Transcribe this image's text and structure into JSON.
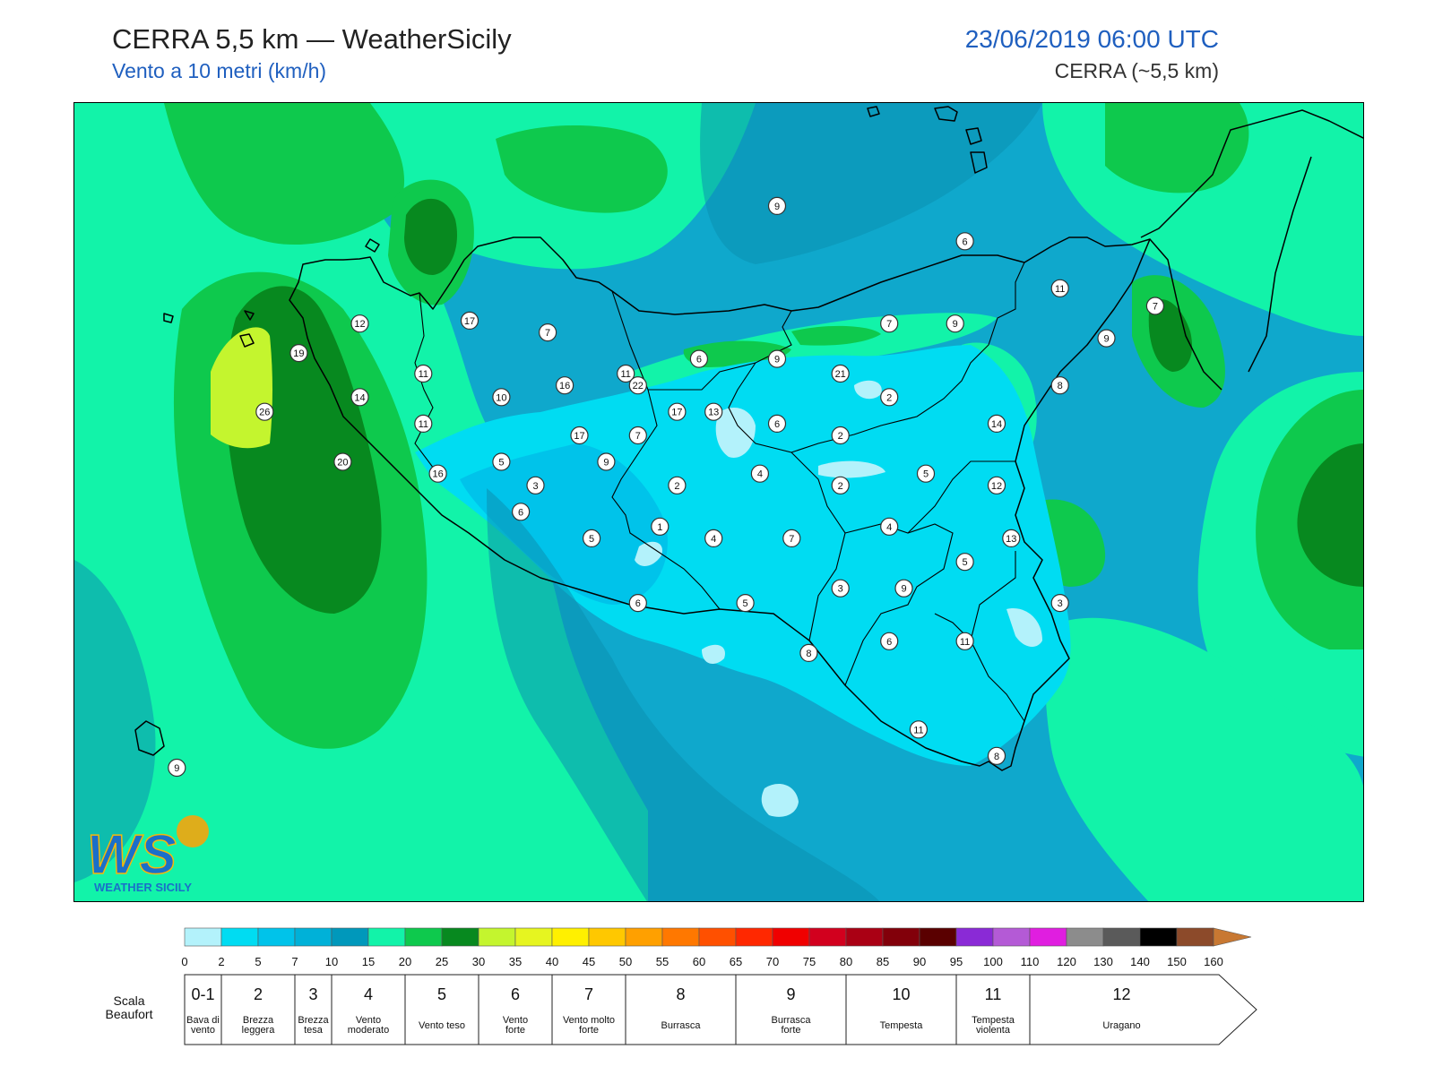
{
  "header": {
    "title": "CERRA 5,5 km — WeatherSicily",
    "subtitle": "Vento a 10 metri (km/h)",
    "datetime": "23/06/2019 06:00 UTC",
    "model": "CERRA (~5,5 km)"
  },
  "logo": {
    "text": "WS",
    "caption": "WEATHER SICILY"
  },
  "colors": {
    "sea_low": "#1fc1e0",
    "sea_mid": "#0fa8cc",
    "teal": "#0b8fb0",
    "mint": "#12f3a9",
    "green": "#0ec94d",
    "dark_green": "#07891f",
    "lime": "#c4f52e",
    "land_calm": "#00dcf2",
    "calm": "#b3f2fb",
    "border": "#000000"
  },
  "stations": [
    {
      "v": "9",
      "lon": 14.34,
      "lat": 38.9
    },
    {
      "v": "6",
      "lon": 15.11,
      "lat": 38.78
    },
    {
      "v": "11",
      "lon": 15.5,
      "lat": 38.62
    },
    {
      "v": "7",
      "lon": 15.89,
      "lat": 38.56
    },
    {
      "v": "9",
      "lon": 15.69,
      "lat": 38.45
    },
    {
      "v": "9",
      "lon": 15.07,
      "lat": 38.5
    },
    {
      "v": "7",
      "lon": 14.8,
      "lat": 38.5
    },
    {
      "v": "12",
      "lon": 12.63,
      "lat": 38.5
    },
    {
      "v": "17",
      "lon": 13.08,
      "lat": 38.51
    },
    {
      "v": "7",
      "lon": 13.4,
      "lat": 38.47
    },
    {
      "v": "19",
      "lon": 12.38,
      "lat": 38.4
    },
    {
      "v": "6",
      "lon": 14.02,
      "lat": 38.38
    },
    {
      "v": "9",
      "lon": 14.34,
      "lat": 38.38
    },
    {
      "v": "11",
      "lon": 12.89,
      "lat": 38.33
    },
    {
      "v": "11",
      "lon": 13.72,
      "lat": 38.33
    },
    {
      "v": "21",
      "lon": 14.6,
      "lat": 38.33
    },
    {
      "v": "16",
      "lon": 13.47,
      "lat": 38.29
    },
    {
      "v": "22",
      "lon": 13.77,
      "lat": 38.29
    },
    {
      "v": "8",
      "lon": 15.5,
      "lat": 38.29
    },
    {
      "v": "14",
      "lon": 12.63,
      "lat": 38.25
    },
    {
      "v": "10",
      "lon": 13.21,
      "lat": 38.25
    },
    {
      "v": "2",
      "lon": 14.8,
      "lat": 38.25
    },
    {
      "v": "26",
      "lon": 12.24,
      "lat": 38.2
    },
    {
      "v": "17",
      "lon": 13.93,
      "lat": 38.2
    },
    {
      "v": "13",
      "lon": 14.08,
      "lat": 38.2
    },
    {
      "v": "11",
      "lon": 12.89,
      "lat": 38.16
    },
    {
      "v": "6",
      "lon": 14.34,
      "lat": 38.16
    },
    {
      "v": "14",
      "lon": 15.24,
      "lat": 38.16
    },
    {
      "v": "17",
      "lon": 13.53,
      "lat": 38.12
    },
    {
      "v": "7",
      "lon": 13.77,
      "lat": 38.12
    },
    {
      "v": "2",
      "lon": 14.6,
      "lat": 38.12
    },
    {
      "v": "20",
      "lon": 12.56,
      "lat": 38.03
    },
    {
      "v": "5",
      "lon": 13.21,
      "lat": 38.03
    },
    {
      "v": "9",
      "lon": 13.64,
      "lat": 38.03
    },
    {
      "v": "16",
      "lon": 12.95,
      "lat": 37.99
    },
    {
      "v": "4",
      "lon": 14.27,
      "lat": 37.99
    },
    {
      "v": "5",
      "lon": 14.95,
      "lat": 37.99
    },
    {
      "v": "3",
      "lon": 13.35,
      "lat": 37.95
    },
    {
      "v": "2",
      "lon": 13.93,
      "lat": 37.95
    },
    {
      "v": "2",
      "lon": 14.6,
      "lat": 37.95
    },
    {
      "v": "12",
      "lon": 15.24,
      "lat": 37.95
    },
    {
      "v": "6",
      "lon": 13.29,
      "lat": 37.86
    },
    {
      "v": "1",
      "lon": 13.86,
      "lat": 37.81
    },
    {
      "v": "4",
      "lon": 14.8,
      "lat": 37.81
    },
    {
      "v": "5",
      "lon": 13.58,
      "lat": 37.77
    },
    {
      "v": "4",
      "lon": 14.08,
      "lat": 37.77
    },
    {
      "v": "7",
      "lon": 14.4,
      "lat": 37.77
    },
    {
      "v": "13",
      "lon": 15.3,
      "lat": 37.77
    },
    {
      "v": "5",
      "lon": 15.11,
      "lat": 37.69
    },
    {
      "v": "3",
      "lon": 14.6,
      "lat": 37.6
    },
    {
      "v": "9",
      "lon": 14.86,
      "lat": 37.6
    },
    {
      "v": "3",
      "lon": 15.5,
      "lat": 37.55
    },
    {
      "v": "6",
      "lon": 13.77,
      "lat": 37.55
    },
    {
      "v": "5",
      "lon": 14.21,
      "lat": 37.55
    },
    {
      "v": "6",
      "lon": 14.8,
      "lat": 37.42
    },
    {
      "v": "11",
      "lon": 15.11,
      "lat": 37.42
    },
    {
      "v": "8",
      "lon": 14.47,
      "lat": 37.38
    },
    {
      "v": "9",
      "lon": 11.88,
      "lat": 36.99
    },
    {
      "v": "11",
      "lon": 14.92,
      "lat": 37.12
    },
    {
      "v": "8",
      "lon": 15.24,
      "lat": 37.03
    }
  ],
  "colorbar": {
    "ticks": [
      "0",
      "2",
      "5",
      "7",
      "10",
      "15",
      "20",
      "25",
      "30",
      "35",
      "40",
      "45",
      "50",
      "55",
      "60",
      "65",
      "70",
      "75",
      "80",
      "85",
      "90",
      "95",
      "100",
      "110",
      "120",
      "130",
      "140",
      "150",
      "160"
    ],
    "colors": [
      "#b3f2fb",
      "#00dcf2",
      "#00c3ea",
      "#00b1d8",
      "#0098bb",
      "#12f3a9",
      "#0ec94d",
      "#07891f",
      "#c4f52e",
      "#e6f520",
      "#fff000",
      "#ffc800",
      "#ffa000",
      "#ff7800",
      "#ff5000",
      "#ff2800",
      "#f00000",
      "#d2001e",
      "#aa0014",
      "#82000a",
      "#5a0000",
      "#8a2ad6",
      "#b45ad6",
      "#e01ee0",
      "#8c8c8c",
      "#5a5a5a",
      "#000000",
      "#8c4a2a",
      "#c87832"
    ],
    "arrow_color": "#c87832"
  },
  "beaufort": {
    "label_line1": "Scala",
    "label_line2": "Beaufort",
    "classes": [
      {
        "n": "0-1",
        "desc1": "Bava di",
        "desc2": "vento",
        "from": "0",
        "to": "2"
      },
      {
        "n": "2",
        "desc1": "Brezza",
        "desc2": "leggera",
        "from": "2",
        "to": "7"
      },
      {
        "n": "3",
        "desc1": "Brezza",
        "desc2": "tesa",
        "from": "7",
        "to": "10"
      },
      {
        "n": "4",
        "desc1": "Vento",
        "desc2": "moderato",
        "from": "10",
        "to": "20"
      },
      {
        "n": "5",
        "desc1": "Vento teso",
        "desc2": "",
        "from": "20",
        "to": "30"
      },
      {
        "n": "6",
        "desc1": "Vento",
        "desc2": "forte",
        "from": "30",
        "to": "40"
      },
      {
        "n": "7",
        "desc1": "Vento molto",
        "desc2": "forte",
        "from": "40",
        "to": "50"
      },
      {
        "n": "8",
        "desc1": "Burrasca",
        "desc2": "",
        "from": "50",
        "to": "65"
      },
      {
        "n": "9",
        "desc1": "Burrasca",
        "desc2": "forte",
        "from": "65",
        "to": "80"
      },
      {
        "n": "10",
        "desc1": "Tempesta",
        "desc2": "",
        "from": "80",
        "to": "95"
      },
      {
        "n": "11",
        "desc1": "Tempesta",
        "desc2": "violenta",
        "from": "95",
        "to": "110"
      },
      {
        "n": "12",
        "desc1": "Uragano",
        "desc2": "",
        "from": "110",
        "to": "160"
      }
    ]
  }
}
